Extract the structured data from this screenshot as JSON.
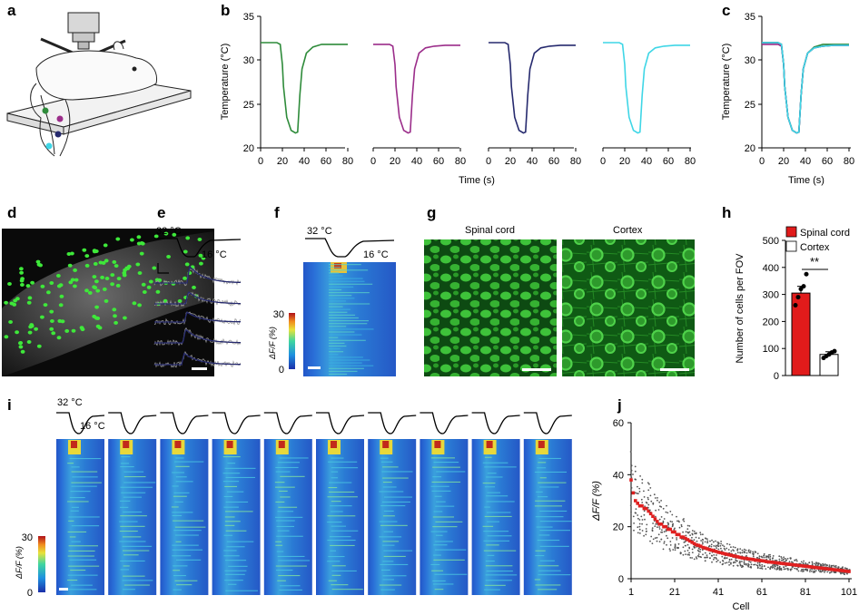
{
  "panel_labels": {
    "a": "a",
    "b": "b",
    "c": "c",
    "d": "d",
    "e": "e",
    "f": "f",
    "g": "g",
    "h": "h",
    "i": "i",
    "j": "j"
  },
  "colors": {
    "green": "#2e8b3a",
    "magenta": "#9b2d8a",
    "navy": "#262a6e",
    "cyan": "#3fd6e6",
    "bar_red": "#e11b1b",
    "mean_red": "#e02020"
  },
  "icons": {
    "panel_a": "mouse-microscope-illustration",
    "panels_d_f_g_i": "imaging-micrographs"
  },
  "temp_labels": {
    "start": "32 °C",
    "end": "16 °C"
  },
  "panel_g": {
    "left_title": "Spinal cord",
    "right_title": "Cortex"
  },
  "colorbar": {
    "label": "ΔF/F (%)",
    "max": "30",
    "min": "0"
  },
  "chart_data": [
    {
      "id": "b",
      "type": "line",
      "ylabel": "Temperature (°C)",
      "xlabel": "Time (s)",
      "xlim": [
        0,
        80
      ],
      "ylim": [
        20,
        35
      ],
      "xticks": [
        "0",
        "20",
        "40",
        "60",
        "80"
      ],
      "yticks": [
        "20",
        "25",
        "30",
        "35"
      ],
      "x": [
        0,
        15,
        18,
        20,
        21,
        24,
        28,
        32,
        34,
        36,
        38,
        42,
        48,
        56,
        66,
        80
      ],
      "series": [
        {
          "color": "green",
          "values": [
            32,
            32,
            31.8,
            29.5,
            27,
            23.5,
            22,
            21.7,
            21.8,
            26,
            29,
            30.8,
            31.5,
            31.8,
            31.8,
            31.8
          ]
        },
        {
          "color": "magenta",
          "values": [
            31.8,
            31.8,
            31.6,
            29.5,
            27,
            23.5,
            22,
            21.7,
            21.8,
            26,
            29,
            30.8,
            31.4,
            31.6,
            31.7,
            31.7
          ]
        },
        {
          "color": "navy",
          "values": [
            32,
            32,
            31.8,
            29.5,
            27,
            23.5,
            22,
            21.7,
            21.8,
            26,
            29,
            30.8,
            31.4,
            31.6,
            31.7,
            31.7
          ]
        },
        {
          "color": "cyan",
          "values": [
            32,
            32,
            31.8,
            29.5,
            27,
            23.5,
            22,
            21.7,
            21.8,
            26,
            29,
            30.8,
            31.4,
            31.6,
            31.7,
            31.7
          ]
        }
      ]
    },
    {
      "id": "c",
      "type": "line",
      "ylabel": "Temperature (°C)",
      "xlabel": "Time (s)",
      "xlim": [
        0,
        80
      ],
      "ylim": [
        20,
        35
      ],
      "xticks": [
        "0",
        "20",
        "40",
        "60",
        "80"
      ],
      "yticks": [
        "20",
        "25",
        "30",
        "35"
      ],
      "x": [
        0,
        15,
        18,
        20,
        21,
        24,
        28,
        32,
        34,
        36,
        38,
        42,
        48,
        56,
        66,
        80
      ],
      "series": [
        {
          "color": "green",
          "values": [
            32,
            32,
            31.8,
            29.5,
            27,
            23.5,
            22,
            21.7,
            21.8,
            26,
            29,
            30.8,
            31.5,
            31.8,
            31.8,
            31.8
          ]
        },
        {
          "color": "magenta",
          "values": [
            31.8,
            31.8,
            31.6,
            29.5,
            27,
            23.5,
            22,
            21.7,
            21.8,
            26,
            29,
            30.8,
            31.4,
            31.6,
            31.7,
            31.7
          ]
        },
        {
          "color": "navy",
          "values": [
            32,
            32,
            31.8,
            29.5,
            27,
            23.5,
            22,
            21.7,
            21.8,
            26,
            29,
            30.8,
            31.4,
            31.6,
            31.7,
            31.7
          ]
        },
        {
          "color": "cyan",
          "values": [
            32,
            32,
            31.8,
            29.5,
            27,
            23.5,
            22,
            21.7,
            21.8,
            26,
            29,
            30.8,
            31.4,
            31.6,
            31.7,
            31.7
          ]
        }
      ]
    },
    {
      "id": "h",
      "type": "bar",
      "ylabel": "Number of cells per FOV",
      "ylim": [
        0,
        500
      ],
      "yticks": [
        "0",
        "100",
        "200",
        "300",
        "400",
        "500"
      ],
      "categories": [
        "Spinal cord",
        "Cortex"
      ],
      "values": [
        305,
        78
      ],
      "errors": [
        25,
        10
      ],
      "points": [
        [
          260,
          290,
          320,
          330,
          375
        ],
        [
          65,
          72,
          78,
          85,
          90
        ]
      ],
      "significance": "**",
      "legend": [
        "Spinal cord",
        "Cortex"
      ]
    },
    {
      "id": "j",
      "type": "scatter",
      "ylabel": "ΔF/F (%)",
      "xlabel": "Cell",
      "xlim": [
        1,
        101
      ],
      "ylim": [
        0,
        60
      ],
      "xticks": [
        "1",
        "21",
        "41",
        "61",
        "81",
        "101"
      ],
      "yticks": [
        "0",
        "20",
        "40",
        "60"
      ],
      "mean": [
        38,
        33,
        30,
        29,
        28,
        28,
        27,
        27,
        26,
        25,
        24,
        23,
        22,
        21,
        21,
        20,
        20,
        19,
        19,
        18,
        18,
        17,
        17,
        16,
        16,
        15.5,
        15,
        14.5,
        14,
        13.5,
        13,
        12.8,
        12.5,
        12,
        11.8,
        11.5,
        11.2,
        11,
        10.7,
        10.5,
        10.2,
        10,
        9.8,
        9.6,
        9.4,
        9.2,
        9,
        8.8,
        8.6,
        8.4,
        8.2,
        8,
        7.9,
        7.8,
        7.6,
        7.5,
        7.4,
        7.2,
        7.1,
        7,
        6.9,
        6.8,
        6.6,
        6.5,
        6.4,
        6.3,
        6.2,
        6.1,
        6,
        5.9,
        5.8,
        5.7,
        5.6,
        5.5,
        5.4,
        5.3,
        5.2,
        5.1,
        5,
        4.9,
        4.8,
        4.7,
        4.6,
        4.5,
        4.4,
        4.3,
        4.2,
        4.1,
        4,
        3.9,
        3.8,
        3.7,
        3.6,
        3.5,
        3.4,
        3.3,
        3.2,
        3.1,
        3,
        2.9,
        2.8
      ]
    }
  ]
}
